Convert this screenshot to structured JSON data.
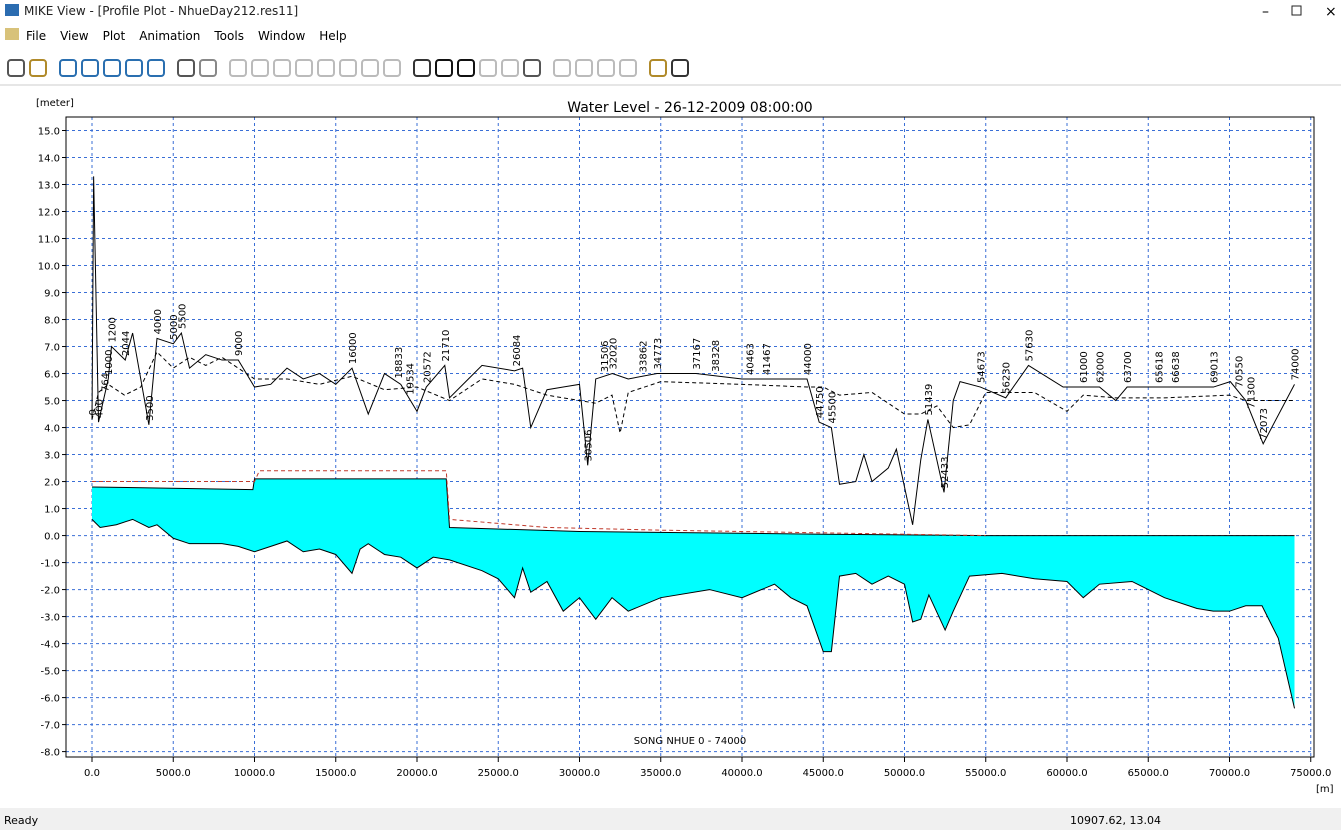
{
  "window": {
    "title": "MIKE View - [Profile Plot - NhueDay212.res11]"
  },
  "menu": [
    "File",
    "View",
    "Plot",
    "Animation",
    "Tools",
    "Window",
    "Help"
  ],
  "status": {
    "left": "Ready",
    "coords": "10907.62, 13.04"
  },
  "chart_data": {
    "type": "profile",
    "title": "Water Level - 26-12-2009 08:00:00",
    "y_label": "[meter]",
    "x_label": "[m]",
    "footer": "SONG NHUE  0 - 74000",
    "grid": true,
    "grid_color": "#3a6fd6",
    "xlim": [
      -1600,
      75200
    ],
    "ylim": [
      -8.2,
      15.5
    ],
    "xticks": [
      {
        "value": 0,
        "label": "0.0"
      },
      {
        "value": 5000,
        "label": "5000.0"
      },
      {
        "value": 10000,
        "label": "10000.0"
      },
      {
        "value": 15000,
        "label": "15000.0"
      },
      {
        "value": 20000,
        "label": "20000.0"
      },
      {
        "value": 25000,
        "label": "25000.0"
      },
      {
        "value": 30000,
        "label": "30000.0"
      },
      {
        "value": 35000,
        "label": "35000.0"
      },
      {
        "value": 40000,
        "label": "40000.0"
      },
      {
        "value": 45000,
        "label": "45000.0"
      },
      {
        "value": 50000,
        "label": "50000.0"
      },
      {
        "value": 55000,
        "label": "55000.0"
      },
      {
        "value": 60000,
        "label": "60000.0"
      },
      {
        "value": 65000,
        "label": "65000.0"
      },
      {
        "value": 70000,
        "label": "70000.0"
      },
      {
        "value": 75000,
        "label": "75000.0"
      }
    ],
    "yticks": [
      {
        "value": 15,
        "label": "15.0"
      },
      {
        "value": 14,
        "label": "14.0"
      },
      {
        "value": 13,
        "label": "13.0"
      },
      {
        "value": 12,
        "label": "12.0"
      },
      {
        "value": 11,
        "label": "11.0"
      },
      {
        "value": 10,
        "label": "10.0"
      },
      {
        "value": 9,
        "label": "9.0"
      },
      {
        "value": 8,
        "label": "8.0"
      },
      {
        "value": 7,
        "label": "7.0"
      },
      {
        "value": 6,
        "label": "6.0"
      },
      {
        "value": 5,
        "label": "5.0"
      },
      {
        "value": 4,
        "label": "4.0"
      },
      {
        "value": 3,
        "label": "3.0"
      },
      {
        "value": 2,
        "label": "2.0"
      },
      {
        "value": 1,
        "label": "1.0"
      },
      {
        "value": 0,
        "label": "0.0"
      },
      {
        "value": -1,
        "label": "-1.0"
      },
      {
        "value": -2,
        "label": "-2.0"
      },
      {
        "value": -3,
        "label": "-3.0"
      },
      {
        "value": -4,
        "label": "-4.0"
      },
      {
        "value": -5,
        "label": "-5.0"
      },
      {
        "value": -6,
        "label": "-6.0"
      },
      {
        "value": -7,
        "label": "-7.0"
      },
      {
        "value": -8,
        "label": "-8.0"
      }
    ],
    "series": [
      {
        "color": "#000000",
        "fill": "#00ffff",
        "line_style": "solid",
        "x": [
          0,
          9900,
          10000,
          21800,
          22000,
          30000,
          45000,
          55000,
          74000
        ],
        "values": [
          1.8,
          1.7,
          2.1,
          2.1,
          0.3,
          0.15,
          0.05,
          0,
          0
        ]
      },
      {
        "color": "#000000",
        "line_style": "solid",
        "x": [
          0,
          500,
          1500,
          2500,
          3500,
          4000,
          5000,
          6000,
          8000,
          9000,
          10000,
          11000,
          12000,
          13000,
          14000,
          15000,
          16000,
          16500,
          17000,
          18000,
          19000,
          20000,
          21000,
          22000,
          24000,
          25000,
          26000,
          26500,
          27000,
          28000,
          29000,
          30000,
          31000,
          32000,
          33000,
          35000,
          38000,
          40000,
          42000,
          43000,
          44000,
          45000,
          45500,
          46000,
          47000,
          48000,
          49000,
          50000,
          50500,
          51000,
          51500,
          52500,
          53000,
          54000,
          56000,
          58000,
          60000,
          61000,
          62000,
          64000,
          66000,
          68000,
          69000,
          70000,
          71000,
          72000,
          73000,
          74000
        ],
        "values": [
          0.6,
          0.3,
          0.4,
          0.6,
          0.3,
          0.4,
          -0.1,
          -0.3,
          -0.3,
          -0.4,
          -0.6,
          -0.4,
          -0.2,
          -0.6,
          -0.5,
          -0.7,
          -1.4,
          -0.5,
          -0.3,
          -0.7,
          -0.8,
          -1.2,
          -0.8,
          -0.9,
          -1.3,
          -1.6,
          -2.3,
          -1.2,
          -2.1,
          -1.7,
          -2.8,
          -2.3,
          -3.1,
          -2.3,
          -2.8,
          -2.3,
          -2.0,
          -2.3,
          -1.8,
          -2.3,
          -2.6,
          -4.3,
          -4.3,
          -1.5,
          -1.4,
          -1.8,
          -1.5,
          -1.8,
          -3.2,
          -3.1,
          -2.2,
          -3.5,
          -2.8,
          -1.5,
          -1.4,
          -1.6,
          -1.7,
          -2.3,
          -1.8,
          -1.7,
          -2.3,
          -2.7,
          -2.8,
          -2.8,
          -2.6,
          -2.6,
          -3.8,
          -6.4
        ]
      },
      {
        "color": "#000000",
        "line_style": "solid",
        "x": [
          0,
          100,
          400,
          1000,
          1200,
          2044,
          2500,
          3500,
          4000,
          5000,
          5500,
          6000,
          7000,
          8000,
          9000,
          10000,
          11000,
          12000,
          13000,
          14000,
          15000,
          16000,
          17000,
          18000,
          19000,
          20000,
          20572,
          21710,
          22000,
          23000,
          24000,
          26000,
          26500,
          27000,
          28000,
          29000,
          30000,
          30506,
          31000,
          32020,
          33000,
          34773,
          37167,
          40000,
          44000,
          44750,
          45500,
          46000,
          47000,
          47500,
          48000,
          49000,
          49500,
          50500,
          51000,
          51439,
          52433,
          53000,
          53417,
          54673,
          56230,
          57630,
          59760,
          62000,
          63000,
          63700,
          69013,
          70050,
          71000,
          72073,
          74000
        ],
        "values": [
          4.3,
          13.3,
          4.2,
          5.8,
          7.0,
          6.5,
          7.5,
          4.1,
          7.3,
          7.1,
          7.5,
          6.2,
          6.7,
          6.5,
          6.5,
          5.5,
          5.6,
          6.2,
          5.8,
          6.0,
          5.6,
          6.2,
          4.5,
          6.0,
          5.6,
          4.6,
          5.5,
          6.3,
          5.1,
          5.7,
          6.3,
          6.1,
          6.2,
          4.0,
          5.4,
          5.5,
          5.6,
          2.6,
          5.8,
          6.0,
          5.8,
          6.0,
          6.0,
          5.8,
          5.8,
          4.2,
          4.0,
          1.9,
          2.0,
          3.0,
          2.0,
          2.5,
          3.2,
          0.4,
          2.8,
          4.3,
          1.6,
          5.0,
          5.7,
          5.5,
          5.1,
          6.3,
          5.5,
          5.5,
          5.0,
          5.5,
          5.5,
          5.7,
          5.0,
          3.4,
          5.6
        ]
      },
      {
        "color": "#000000",
        "line_style": "dashed",
        "x": [
          0,
          400,
          1000,
          2000,
          3000,
          4000,
          5000,
          6000,
          7000,
          8000,
          9000,
          10000,
          12000,
          14000,
          16000,
          18000,
          20000,
          22000,
          24000,
          26000,
          28000,
          30000,
          31000,
          32000,
          32500,
          33000,
          35000,
          40000,
          44000,
          45000,
          46000,
          48000,
          50000,
          51000,
          52000,
          53000,
          54000,
          55000,
          58000,
          60000,
          61000,
          63000,
          66000,
          70000,
          71000,
          74000
        ],
        "values": [
          4.3,
          5.3,
          5.6,
          5.2,
          5.5,
          6.8,
          6.2,
          6.6,
          6.3,
          6.6,
          6.2,
          5.8,
          5.8,
          5.6,
          5.9,
          5.4,
          5.5,
          5.0,
          5.8,
          5.6,
          5.2,
          5.0,
          4.9,
          5.2,
          3.8,
          5.3,
          5.7,
          5.6,
          5.5,
          5.5,
          5.2,
          5.3,
          4.5,
          4.5,
          4.8,
          4.0,
          4.1,
          5.3,
          5.3,
          4.6,
          5.2,
          5.1,
          5.1,
          5.2,
          5.0,
          5.0
        ]
      },
      {
        "color": "#c0392b",
        "line_style": "dashed",
        "x": [
          0,
          10000,
          10300,
          21800,
          22000,
          24000,
          28000,
          35000,
          45000,
          55000
        ],
        "values": [
          2.0,
          2.0,
          2.4,
          2.4,
          0.6,
          0.5,
          0.3,
          0.2,
          0.1,
          0.0
        ]
      }
    ],
    "chainage_labels": [
      0,
      400,
      764,
      1000,
      1200,
      2044,
      3500,
      4000,
      5000,
      5500,
      9000,
      16000,
      18833,
      19534,
      20572,
      21710,
      26084,
      30506,
      31506,
      32020,
      33862,
      34773,
      37167,
      38328,
      40463,
      41467,
      44000,
      44750,
      45500,
      51439,
      52433,
      54673,
      56230,
      57630,
      61000,
      62000,
      63700,
      65618,
      66638,
      69013,
      70550,
      71300,
      72073,
      74000
    ]
  }
}
